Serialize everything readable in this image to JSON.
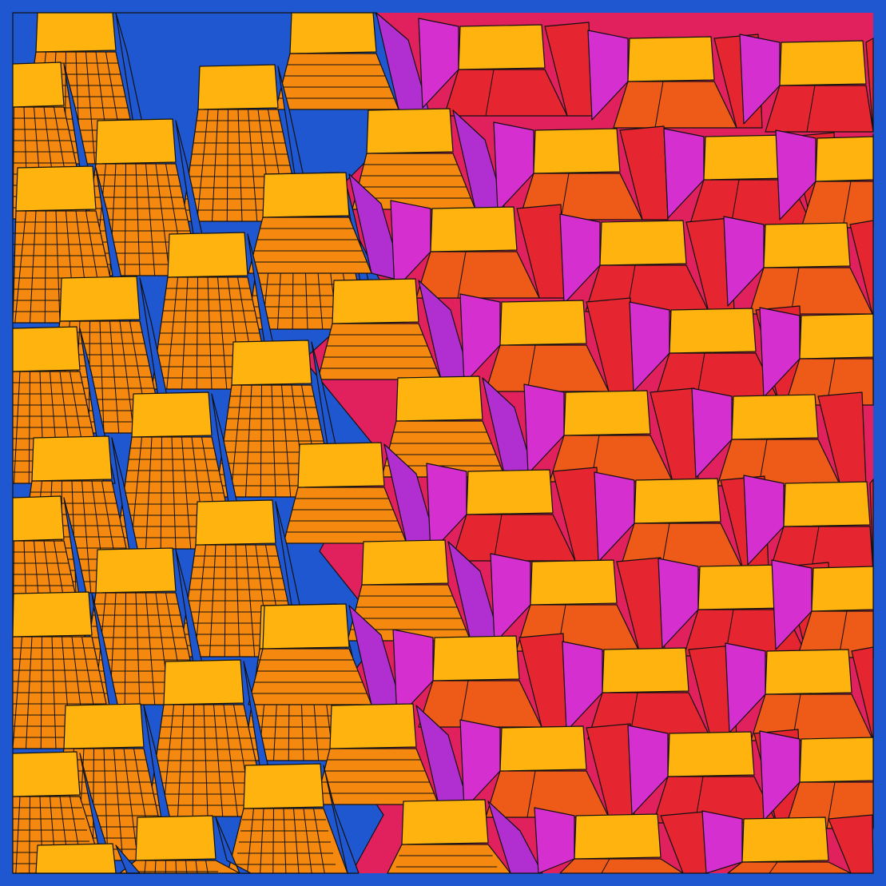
{
  "artwork": {
    "palette": {
      "frame": "#1f57d0",
      "top_face": "#ffb30f",
      "orange_skirt": "#f5890f",
      "orange_red_skirt": "#ee5a18",
      "red_skirt": "#e52530",
      "pink_base": "#e0215d",
      "magenta_side": "#d52fd0",
      "violet_side": "#b12fd0",
      "blue_side": "#1f57d0",
      "outline": "#111111"
    }
  }
}
